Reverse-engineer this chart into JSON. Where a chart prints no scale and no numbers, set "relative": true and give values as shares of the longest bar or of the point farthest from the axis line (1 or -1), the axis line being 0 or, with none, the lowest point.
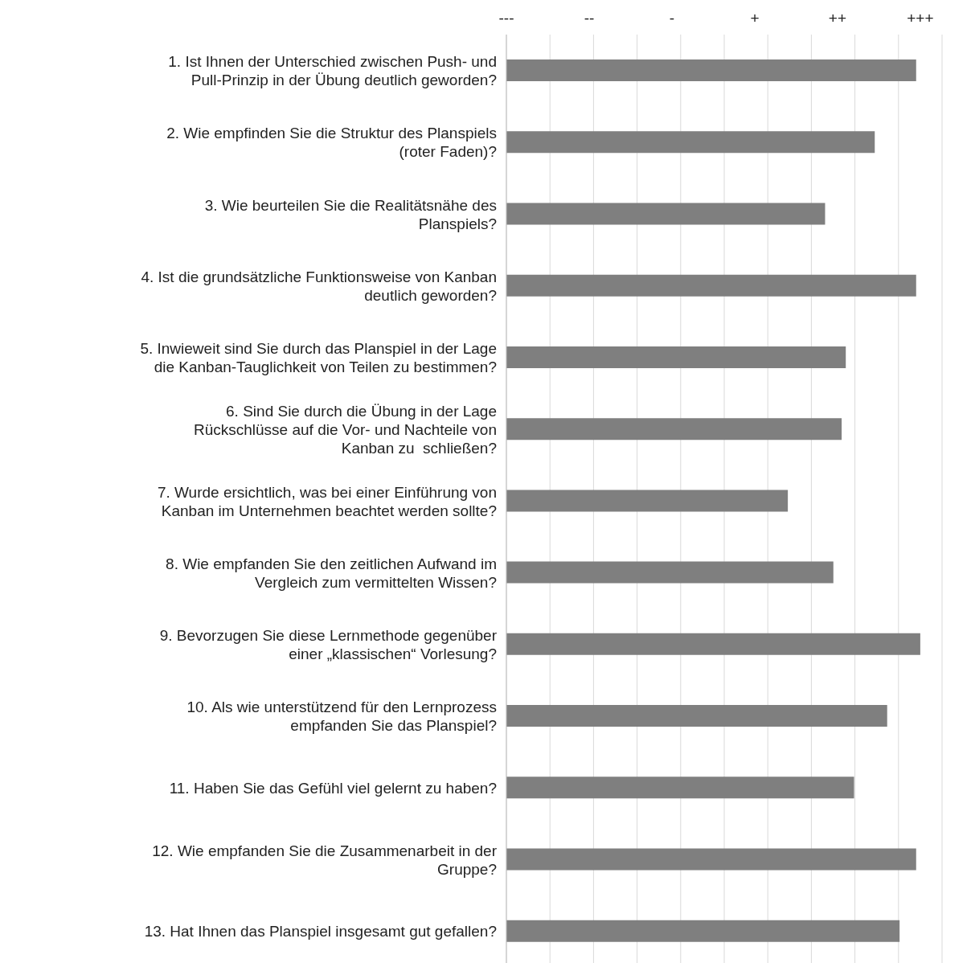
{
  "chart_data": {
    "type": "bar",
    "orientation": "horizontal",
    "color": "#7f7f7f",
    "grid": true,
    "legend": false,
    "categories": [
      "1. Ist Ihnen der Unterschied zwischen Push- und\nPull-Prinzip in der Übung deutlich geworden?",
      "2. Wie empfinden Sie die Struktur des Planspiels\n(roter Faden)?",
      "3. Wie beurteilen Sie die Realitätsnähe des\nPlanspiels?",
      "4. Ist die grundsätzliche Funktionsweise von Kanban\ndeutlich geworden?",
      "5. Inwieweit sind Sie durch das Planspiel in der Lage\ndie Kanban-Tauglichkeit von Teilen zu bestimmen?",
      "6. Sind Sie durch die Übung in der Lage\nRückschlüsse auf die Vor- und Nachteile von\nKanban zu  schließen?",
      "7. Wurde ersichtlich, was bei einer Einführung von\nKanban im Unternehmen beachtet werden sollte?",
      "8. Wie empfanden Sie den zeitlichen Aufwand im\nVergleich zum vermittelten Wissen?",
      "9. Bevorzugen Sie diese Lernmethode gegenüber\neiner „klassischen“ Vorlesung?",
      "10. Als wie unterstützend für den Lernprozess\nempfanden Sie das Planspiel?",
      "11. Haben Sie das Gefühl viel gelernt zu haben?",
      "12. Wie empfanden Sie die Zusammenarbeit in der\nGruppe?",
      "13. Hat Ihnen das Planspiel insgesamt gut gefallen?"
    ],
    "values": [
      0.99,
      0.89,
      0.77,
      0.99,
      0.82,
      0.81,
      0.68,
      0.79,
      1,
      0.92,
      0.84,
      0.99,
      0.95
    ],
    "relative": true,
    "annotations": [
      "---",
      "--",
      "-",
      "+",
      "++",
      "+++"
    ]
  }
}
